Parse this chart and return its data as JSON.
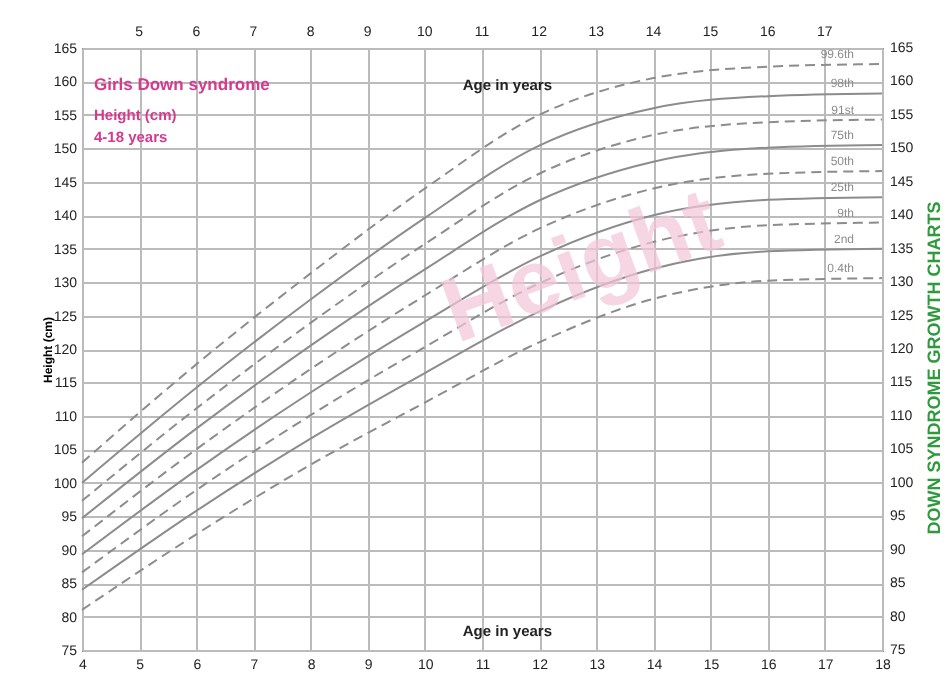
{
  "chart_data": {
    "type": "line",
    "title": "Girls Down syndrome",
    "subtitle": "Height (cm)",
    "xlabel": "Age in years",
    "x2label": "Age in years",
    "ylabel": "Height (cm)",
    "annotations": [
      "4-18 years",
      "Height",
      "DOWN SYNDROME GROWTH CHARTS"
    ],
    "x": [
      4,
      6,
      8,
      10,
      12,
      14,
      16,
      18
    ],
    "series": [
      {
        "name": "99.6th",
        "color": "#8c8c8c",
        "line_style": "dashed",
        "values": [
          103,
          117.7,
          131.3,
          144,
          155,
          160.5,
          162.2,
          162.6
        ]
      },
      {
        "name": "98th",
        "color": "#8c8c8c",
        "line_style": "solid",
        "values": [
          100,
          114.2,
          127.4,
          139.6,
          150.4,
          156,
          157.8,
          158.2
        ]
      },
      {
        "name": "91st",
        "color": "#8c8c8c",
        "line_style": "dashed",
        "values": [
          97.3,
          111.1,
          123.9,
          135.7,
          146.2,
          152,
          153.9,
          154.3
        ]
      },
      {
        "name": "75th",
        "color": "#8c8c8c",
        "line_style": "solid",
        "values": [
          94.7,
          108.1,
          120.5,
          131.9,
          142.2,
          148,
          150.1,
          150.5
        ]
      },
      {
        "name": "50th",
        "color": "#8c8c8c",
        "line_style": "dashed",
        "values": [
          92,
          105,
          117,
          128,
          138,
          144,
          146.2,
          146.6
        ]
      },
      {
        "name": "25th",
        "color": "#8c8c8c",
        "line_style": "solid",
        "values": [
          89.3,
          101.9,
          113.5,
          124.1,
          133.8,
          140,
          142.3,
          142.7
        ]
      },
      {
        "name": "9th",
        "color": "#8c8c8c",
        "line_style": "dashed",
        "values": [
          86.6,
          98.9,
          110.1,
          120.3,
          129.8,
          136,
          138.5,
          138.9
        ]
      },
      {
        "name": "2nd",
        "color": "#8c8c8c",
        "line_style": "solid",
        "values": [
          84,
          95.8,
          106.6,
          116.4,
          125.6,
          132,
          134.6,
          135
        ]
      },
      {
        "name": "0.4th",
        "color": "#8c8c8c",
        "line_style": "dashed",
        "values": [
          81,
          92.3,
          102.7,
          112,
          121,
          127.5,
          130.2,
          130.6
        ]
      }
    ],
    "xlim": [
      4,
      18
    ],
    "xticks": [
      4,
      5,
      6,
      7,
      8,
      9,
      10,
      11,
      12,
      13,
      14,
      15,
      16,
      17,
      18
    ],
    "x2lim": [
      4,
      18
    ],
    "x2ticks": [
      5,
      6,
      7,
      8,
      9,
      10,
      11,
      12,
      13,
      14,
      15,
      16,
      17
    ],
    "ylim": [
      75,
      165
    ],
    "yticks": [
      75,
      80,
      85,
      90,
      95,
      100,
      105,
      110,
      115,
      120,
      125,
      130,
      135,
      140,
      145,
      150,
      155,
      160,
      165
    ],
    "y2lim": [
      75,
      165
    ],
    "y2ticks": [
      75,
      80,
      85,
      90,
      95,
      100,
      105,
      110,
      115,
      120,
      125,
      130,
      135,
      140,
      145,
      150,
      155,
      160,
      165
    ],
    "grid": true
  }
}
